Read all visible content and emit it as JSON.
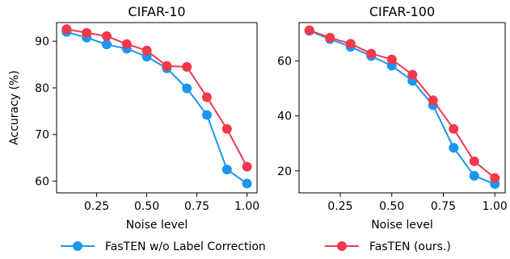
{
  "chart_data": [
    {
      "type": "line",
      "title": "CIFAR-10",
      "xlabel": "Noise level",
      "ylabel": "Accuracy (%)",
      "xlim": [
        0.05,
        1.05
      ],
      "ylim": [
        57.5,
        94.0
      ],
      "xticks": [
        0.25,
        0.5,
        0.75,
        1.0
      ],
      "xtick_labels": [
        "0.25",
        "0.50",
        "0.75",
        "1.00"
      ],
      "yticks": [
        60,
        70,
        80,
        90
      ],
      "ytick_labels": [
        "60",
        "70",
        "80",
        "90"
      ],
      "x": [
        0.1,
        0.2,
        0.3,
        0.4,
        0.5,
        0.6,
        0.7,
        0.8,
        0.9,
        1.0
      ],
      "series": [
        {
          "name": "FasTEN w/o Label Correction",
          "color": "#1a96f0",
          "values": [
            92.0,
            90.8,
            89.3,
            88.4,
            86.7,
            84.2,
            79.9,
            74.2,
            62.5,
            59.5
          ]
        },
        {
          "name": "FasTEN (ours.)",
          "color": "#f0394c",
          "values": [
            92.6,
            91.8,
            91.1,
            89.4,
            88.0,
            84.7,
            84.5,
            78.0,
            71.2,
            63.1
          ]
        }
      ],
      "grid": false
    },
    {
      "type": "line",
      "title": "CIFAR-100",
      "xlabel": "Noise level",
      "ylabel": "",
      "xlim": [
        0.05,
        1.05
      ],
      "ylim": [
        12.0,
        74.0
      ],
      "xticks": [
        0.25,
        0.5,
        0.75,
        1.0
      ],
      "xtick_labels": [
        "0.25",
        "0.50",
        "0.75",
        "1.00"
      ],
      "yticks": [
        20,
        40,
        60
      ],
      "ytick_labels": [
        "20",
        "40",
        "60"
      ],
      "x": [
        0.1,
        0.2,
        0.3,
        0.4,
        0.5,
        0.6,
        0.7,
        0.8,
        0.9,
        1.0
      ],
      "series": [
        {
          "name": "FasTEN w/o Label Correction",
          "color": "#1a96f0",
          "values": [
            71.0,
            68.0,
            65.2,
            61.8,
            58.3,
            52.8,
            43.9,
            28.4,
            18.2,
            15.2
          ]
        },
        {
          "name": "FasTEN (ours.)",
          "color": "#f0394c",
          "values": [
            71.2,
            68.5,
            66.3,
            62.7,
            60.6,
            55.0,
            45.7,
            35.3,
            23.5,
            17.4
          ]
        }
      ],
      "grid": false
    }
  ],
  "legend": {
    "placement": "bottom",
    "items": [
      {
        "label": "FasTEN w/o Label Correction",
        "color": "#1a96f0"
      },
      {
        "label": "FasTEN (ours.)",
        "color": "#f0394c"
      }
    ]
  }
}
